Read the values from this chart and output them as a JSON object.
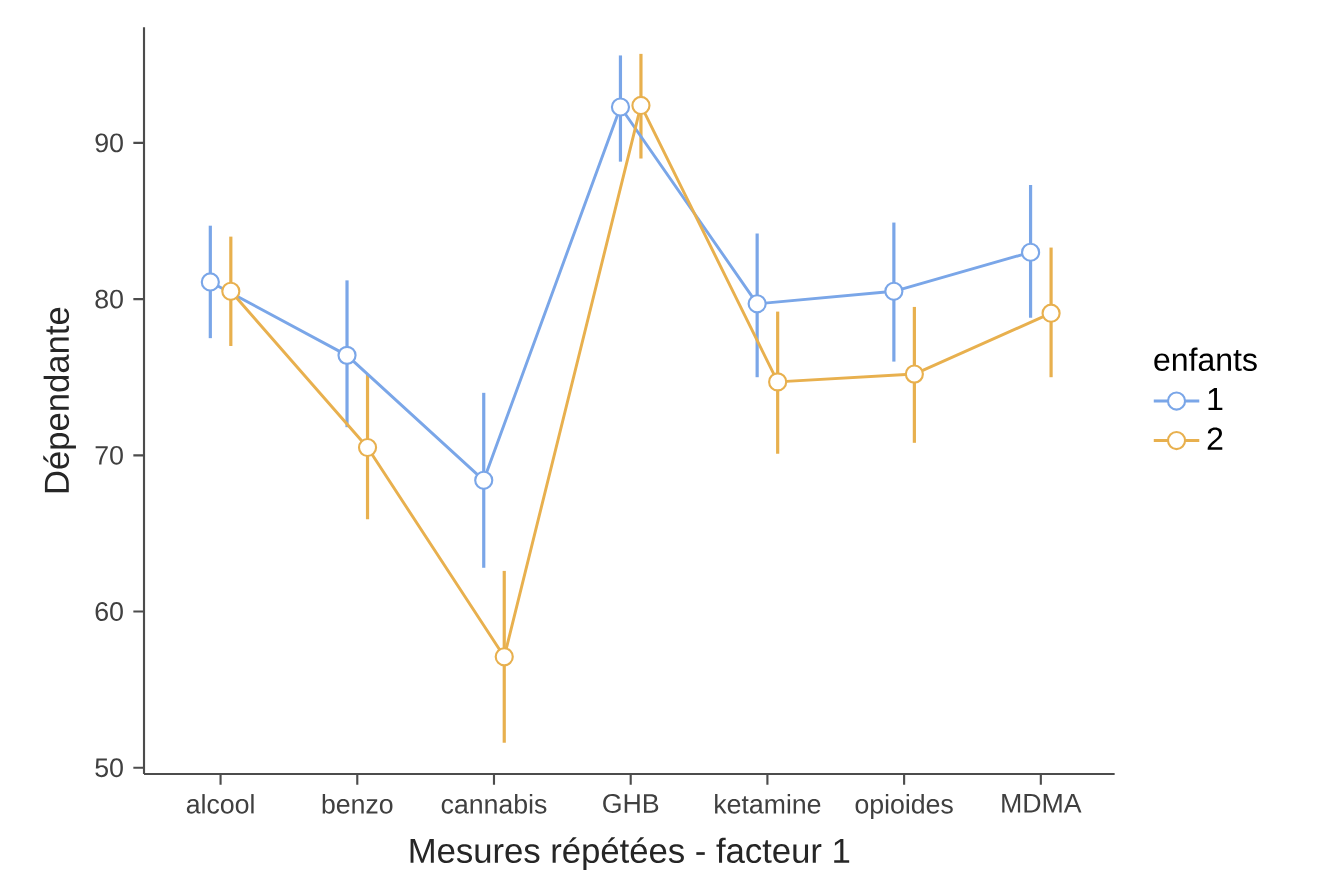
{
  "chart_data": {
    "type": "line",
    "xlabel": "Mesures répétées - facteur 1",
    "ylabel": "Dépendante",
    "legend_title": "enfants",
    "categories": [
      "alcool",
      "benzo",
      "cannabis",
      "GHB",
      "ketamine",
      "opioides",
      "MDMA"
    ],
    "series": [
      {
        "name": "1",
        "color": "#7aa6e8",
        "values": [
          81.1,
          76.4,
          68.4,
          92.3,
          79.7,
          80.5,
          83.0
        ],
        "errors": [
          [
            77.5,
            84.7
          ],
          [
            71.8,
            81.2
          ],
          [
            62.8,
            74.0
          ],
          [
            88.8,
            95.6
          ],
          [
            75.0,
            84.2
          ],
          [
            76.0,
            84.9
          ],
          [
            78.8,
            87.3
          ]
        ]
      },
      {
        "name": "2",
        "color": "#e8b04e",
        "values": [
          80.5,
          70.5,
          57.1,
          92.4,
          74.7,
          75.2,
          79.1
        ],
        "errors": [
          [
            77.0,
            84.0
          ],
          [
            65.9,
            75.2
          ],
          [
            51.6,
            62.6
          ],
          [
            89.0,
            95.7
          ],
          [
            70.1,
            79.2
          ],
          [
            70.8,
            79.5
          ],
          [
            75.0,
            83.3
          ]
        ]
      }
    ],
    "ylim": [
      49.6,
      97.4
    ],
    "yticks": [
      50,
      60,
      70,
      80,
      90
    ],
    "grid": false,
    "legend": "right",
    "marker": "circle",
    "line_style": "solid"
  }
}
